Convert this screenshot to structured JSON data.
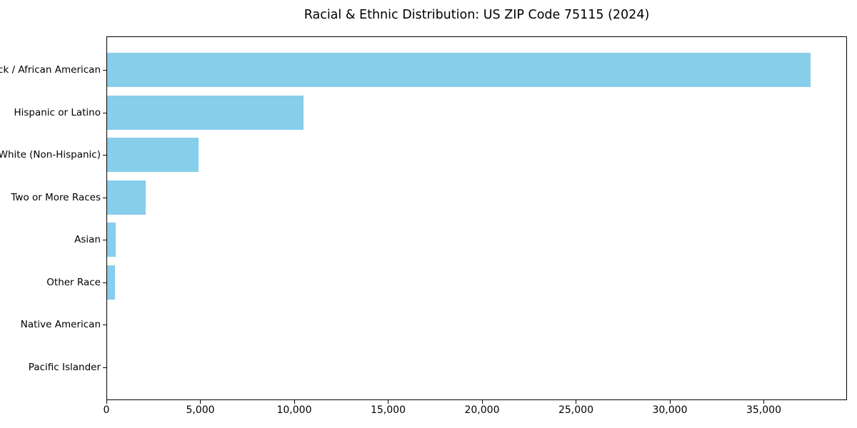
{
  "chart_data": {
    "type": "bar",
    "orientation": "horizontal",
    "title": "Racial & Ethnic Distribution: US ZIP Code 75115 (2024)",
    "xlabel": "",
    "ylabel": "",
    "categories": [
      "Black / African American",
      "Hispanic or Latino",
      "White (Non-Hispanic)",
      "Two or More Races",
      "Asian",
      "Other Race",
      "Native American",
      "Pacific Islander"
    ],
    "values": [
      37500,
      10500,
      4900,
      2100,
      500,
      450,
      0,
      0
    ],
    "bar_color": "#87CEEB",
    "xlim": [
      0,
      39430
    ],
    "x_ticks": [
      0,
      5000,
      10000,
      15000,
      20000,
      25000,
      30000,
      35000
    ],
    "x_tick_labels": [
      "0",
      "5,000",
      "10,000",
      "15,000",
      "20,000",
      "25,000",
      "30,000",
      "35,000"
    ],
    "grid": false,
    "legend": "none",
    "frame": true
  }
}
